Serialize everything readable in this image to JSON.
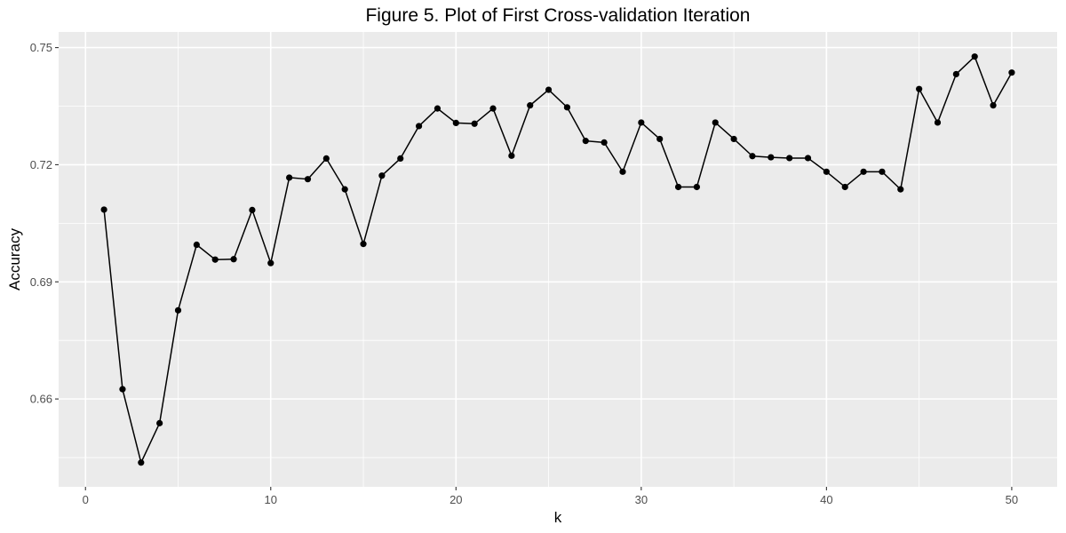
{
  "chart_data": {
    "type": "line",
    "title": "Figure 5. Plot of First Cross-validation Iteration",
    "xlabel": "k",
    "ylabel": "Accuracy",
    "xlim": [
      -1.45,
      52.45
    ],
    "ylim": [
      0.6375,
      0.754
    ],
    "x_ticks": [
      0,
      10,
      20,
      30,
      40,
      50
    ],
    "y_ticks": [
      0.66,
      0.69,
      0.72,
      0.75
    ],
    "x_tick_labels": [
      "0",
      "10",
      "20",
      "30",
      "40",
      "50"
    ],
    "y_tick_labels": [
      "0.66",
      "0.69",
      "0.72",
      "0.75"
    ],
    "grid": true,
    "markers": true,
    "colors": {
      "panel": "#ebebeb",
      "grid": "#ffffff",
      "line": "#000000",
      "point": "#000000",
      "tick": "#4d4d4d"
    },
    "x": [
      1,
      2,
      3,
      4,
      5,
      6,
      7,
      8,
      9,
      10,
      11,
      12,
      13,
      14,
      15,
      16,
      17,
      18,
      19,
      20,
      21,
      22,
      23,
      24,
      25,
      26,
      27,
      28,
      29,
      30,
      31,
      32,
      33,
      34,
      35,
      36,
      37,
      38,
      39,
      40,
      41,
      42,
      43,
      44,
      45,
      46,
      47,
      48,
      49,
      50
    ],
    "y": [
      0.7085,
      0.6625,
      0.6437,
      0.6538,
      0.6827,
      0.6995,
      0.6957,
      0.6958,
      0.7084,
      0.6948,
      0.7167,
      0.7163,
      0.7216,
      0.7137,
      0.6997,
      0.7172,
      0.7216,
      0.7299,
      0.7344,
      0.7307,
      0.7305,
      0.7344,
      0.7223,
      0.7352,
      0.7392,
      0.7347,
      0.7261,
      0.7257,
      0.7182,
      0.7308,
      0.7266,
      0.7143,
      0.7143,
      0.7308,
      0.7266,
      0.7222,
      0.7219,
      0.7217,
      0.7217,
      0.7182,
      0.7143,
      0.7182,
      0.7182,
      0.7137,
      0.7394,
      0.7308,
      0.7432,
      0.7477,
      0.7352,
      0.7436
    ]
  }
}
